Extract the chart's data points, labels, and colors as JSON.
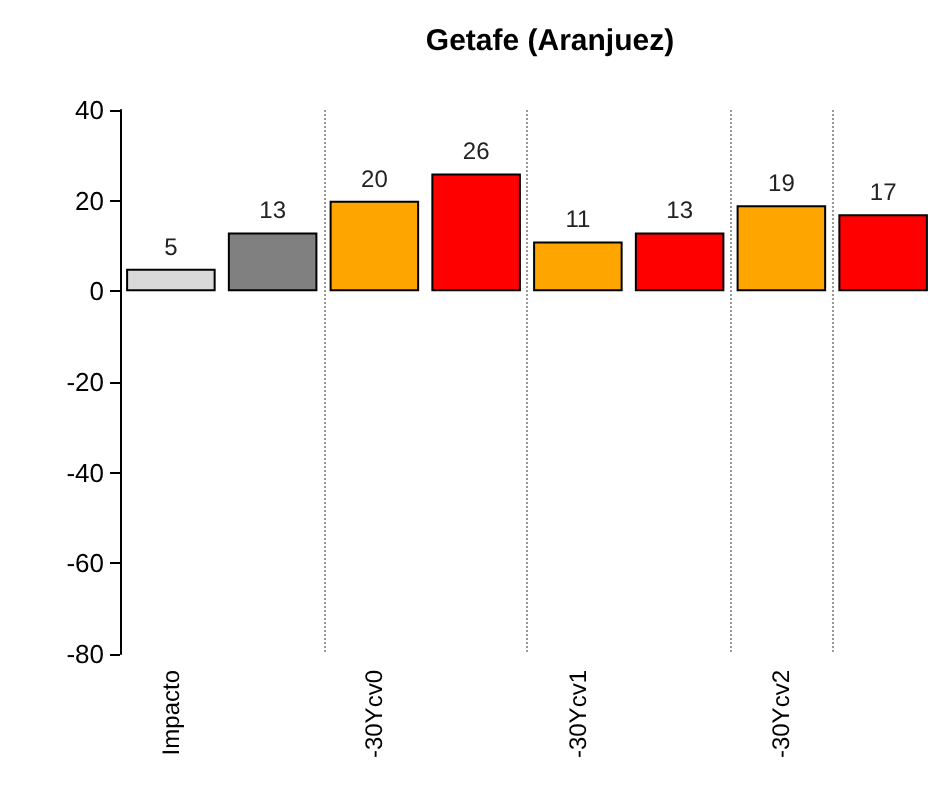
{
  "chart_data": {
    "type": "bar",
    "title": "Getafe (Aranjuez)",
    "categories": [
      "Impacto",
      null,
      "-30Ycv0",
      null,
      "-30Ycv1",
      null,
      "-30Ycv2",
      null
    ],
    "values": [
      5,
      13,
      20,
      26,
      11,
      13,
      19,
      17
    ],
    "colors": [
      "#d9d9d9",
      "#808080",
      "#ffa500",
      "#ff0000",
      "#ffa500",
      "#ff0000",
      "#ffa500",
      "#ff0000"
    ],
    "ylim": [
      -80,
      40
    ],
    "yticks": [
      -80,
      -60,
      -40,
      -20,
      0,
      20,
      40
    ],
    "grid": "x",
    "data_labels": true
  }
}
